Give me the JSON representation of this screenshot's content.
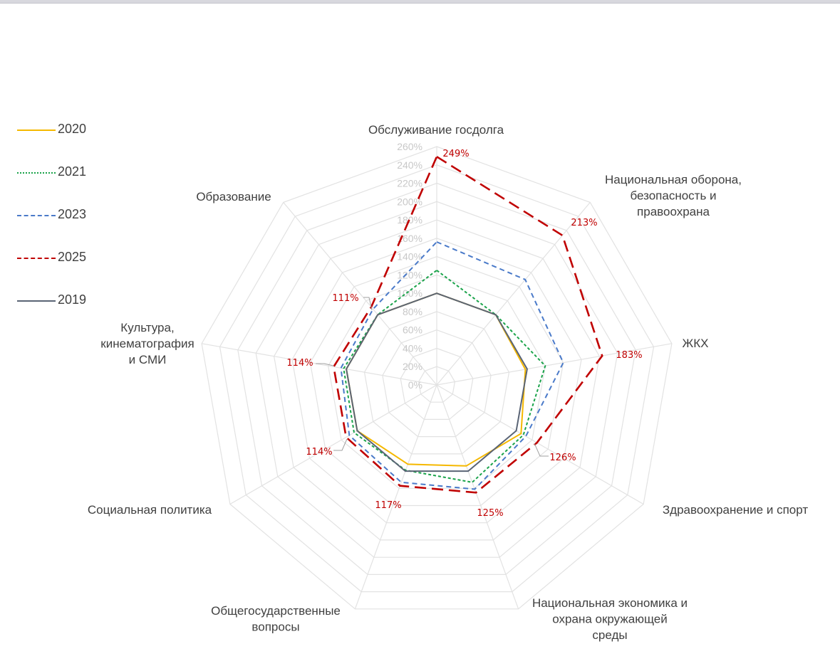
{
  "chart_data": {
    "type": "radar",
    "categories": [
      [
        "Обслуживание  госдолга"
      ],
      [
        "Национальная  оборона,",
        "безопасность  и",
        "правоохрана"
      ],
      [
        "ЖКХ"
      ],
      [
        "Здравоохранение  и спорт"
      ],
      [
        "Национальная  экономика и",
        "охрана окружающей",
        "среды"
      ],
      [
        "Общегосударственные",
        "вопросы"
      ],
      [
        "Социальная  политика"
      ],
      [
        "Культура,",
        "кинематография",
        "и СМИ"
      ],
      [
        "Образование"
      ]
    ],
    "rlim": [
      0,
      260
    ],
    "ticks": [
      "0%",
      "20%",
      "40%",
      "60%",
      "80%",
      "100%",
      "120%",
      "140%",
      "160%",
      "180%",
      "200%",
      "220%",
      "240%",
      "260%"
    ],
    "series": [
      {
        "name": "2020",
        "color": "#f5b800",
        "dash": "solid",
        "values": [
          100,
          100,
          98,
          106,
          94,
          92,
          100,
          100,
          100
        ]
      },
      {
        "name": "2021",
        "color": "#1aa34a",
        "dash": "dotted",
        "values": [
          125,
          100,
          120,
          109,
          113,
          99,
          104,
          103,
          100
        ]
      },
      {
        "name": "2023",
        "color": "#4a7ac9",
        "dash": "dashed",
        "values": [
          156,
          150,
          140,
          112,
          121,
          113,
          110,
          106,
          108
        ]
      },
      {
        "name": "2025",
        "color": "#c00000",
        "dash": "longdash",
        "values": [
          249,
          213,
          183,
          126,
          125,
          117,
          114,
          114,
          111
        ]
      },
      {
        "name": "2019",
        "color": "#5a6475",
        "dash": "solid",
        "values": [
          100,
          100,
          100,
          100,
          100,
          100,
          100,
          100,
          100
        ]
      }
    ],
    "data_labels": [
      {
        "series": "2025",
        "index": 0,
        "text": "249%"
      },
      {
        "series": "2025",
        "index": 1,
        "text": "213%"
      },
      {
        "series": "2025",
        "index": 2,
        "text": "183%"
      },
      {
        "series": "2025",
        "index": 3,
        "text": "126%"
      },
      {
        "series": "2025",
        "index": 4,
        "text": "125%"
      },
      {
        "series": "2025",
        "index": 5,
        "text": "117%"
      },
      {
        "series": "2025",
        "index": 6,
        "text": "114%"
      },
      {
        "series": "2025",
        "index": 7,
        "text": "114%"
      },
      {
        "series": "2025",
        "index": 8,
        "text": "111%"
      }
    ],
    "legend_placement": "left"
  }
}
